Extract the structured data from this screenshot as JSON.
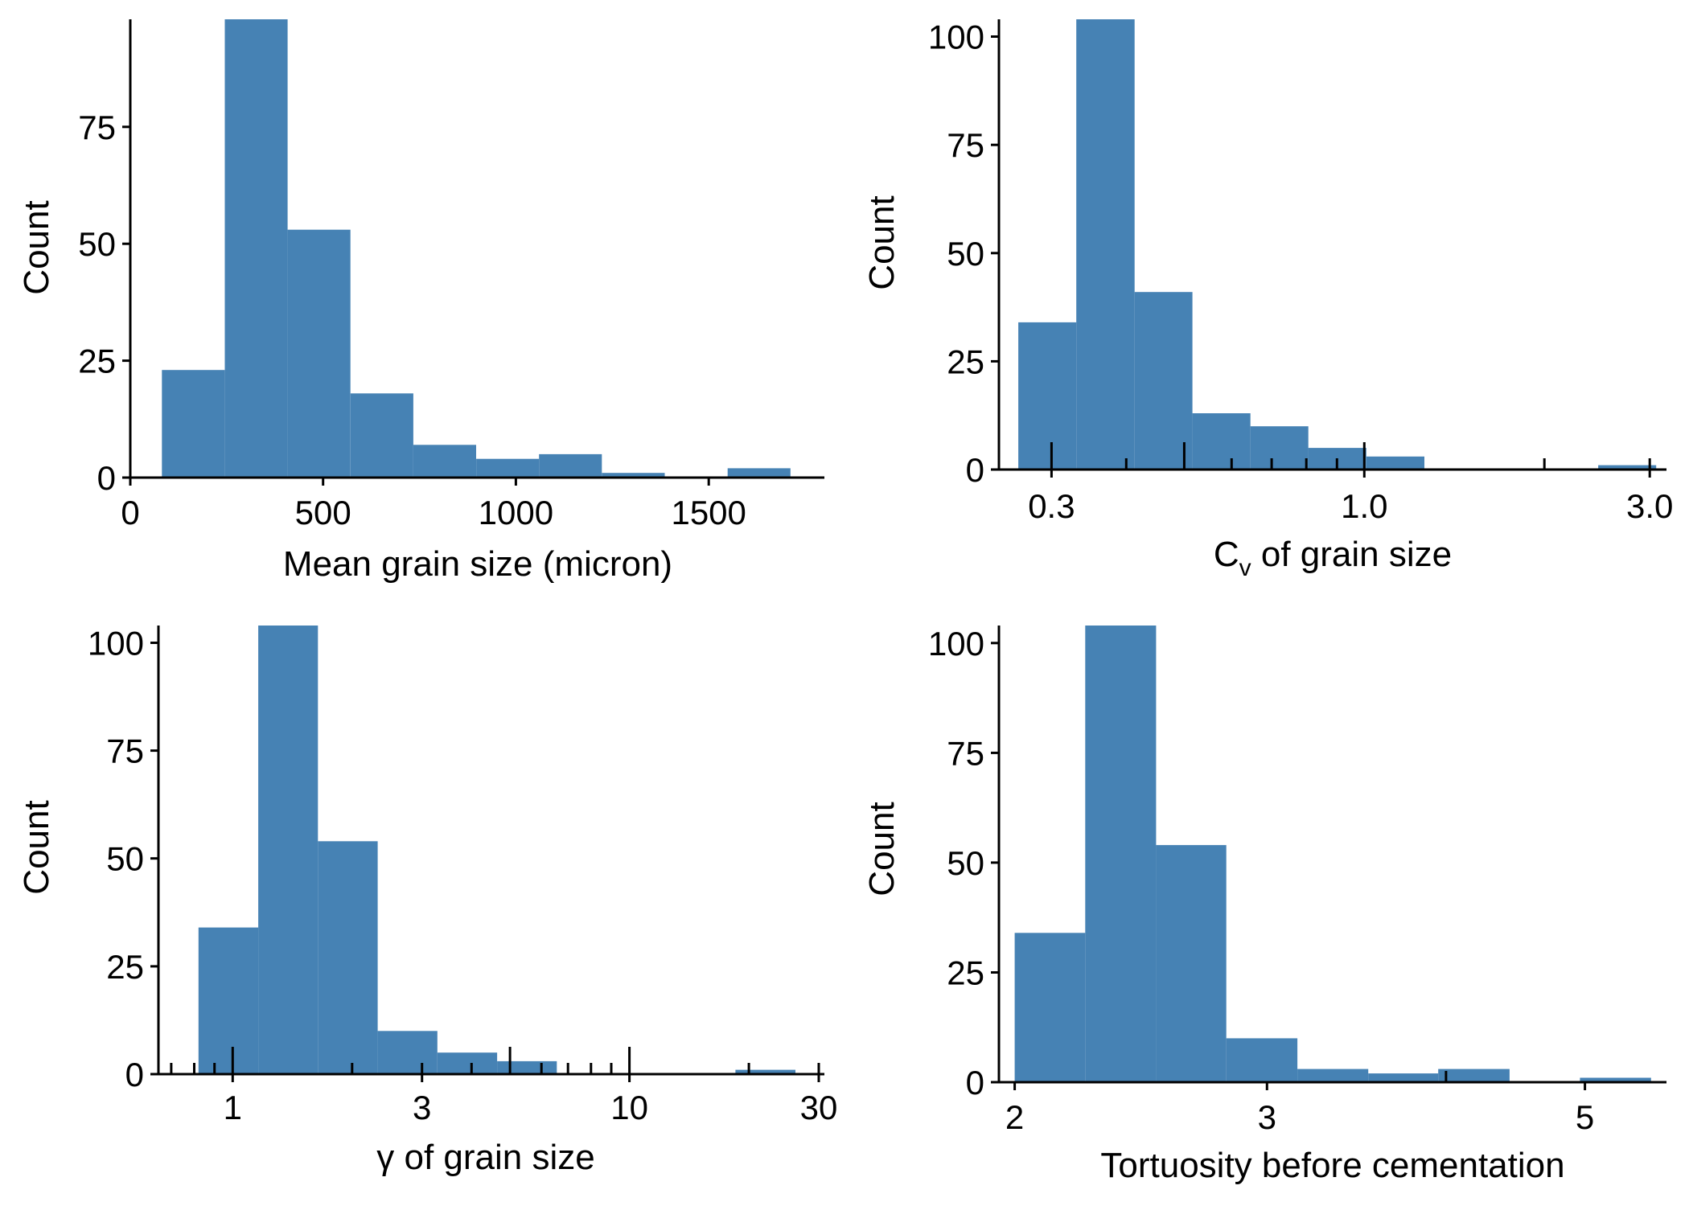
{
  "colors": {
    "bar": "#4682B4",
    "axis": "#000000",
    "background": "#FFFFFF"
  },
  "chart_data": [
    {
      "type": "histogram",
      "position": "top-left",
      "scale": "linear",
      "xlabel": "Mean grain size (micron)",
      "ylabel": "Count",
      "xlim": [
        0,
        1800
      ],
      "ylim": [
        0,
        98
      ],
      "xticks": [
        {
          "value": 0,
          "label": "0"
        },
        {
          "value": 500,
          "label": "500"
        },
        {
          "value": 1000,
          "label": "1000"
        },
        {
          "value": 1500,
          "label": "1500"
        }
      ],
      "yticks": [
        {
          "value": 0,
          "label": "0"
        },
        {
          "value": 25,
          "label": "25"
        },
        {
          "value": 50,
          "label": "50"
        },
        {
          "value": 75,
          "label": "75"
        }
      ],
      "bins": [
        {
          "x0": 82,
          "x1": 245,
          "count": 23
        },
        {
          "x0": 245,
          "x1": 408,
          "count": 98
        },
        {
          "x0": 408,
          "x1": 571,
          "count": 53
        },
        {
          "x0": 571,
          "x1": 734,
          "count": 18
        },
        {
          "x0": 734,
          "x1": 897,
          "count": 7
        },
        {
          "x0": 897,
          "x1": 1060,
          "count": 4
        },
        {
          "x0": 1060,
          "x1": 1223,
          "count": 5
        },
        {
          "x0": 1223,
          "x1": 1386,
          "count": 1
        },
        {
          "x0": 1386,
          "x1": 1549,
          "count": 0
        },
        {
          "x0": 1549,
          "x1": 1712,
          "count": 2
        }
      ],
      "rug": []
    },
    {
      "type": "histogram",
      "position": "top-right",
      "scale": "log10",
      "xlabel_main": "C",
      "xlabel_sub": "v",
      "xlabel_rest": " of grain size",
      "ylabel": "Count",
      "xlim": [
        0.245,
        3.2
      ],
      "ylim": [
        0,
        104
      ],
      "xticks": [
        {
          "value": 0.3,
          "label": "0.3"
        },
        {
          "value": 1.0,
          "label": "1.0"
        },
        {
          "value": 3.0,
          "label": "3.0"
        }
      ],
      "yticks": [
        {
          "value": 0,
          "label": "0"
        },
        {
          "value": 25,
          "label": "25"
        },
        {
          "value": 50,
          "label": "50"
        },
        {
          "value": 75,
          "label": "75"
        },
        {
          "value": 100,
          "label": "100"
        }
      ],
      "bins": [
        {
          "x0": 0.264,
          "x1": 0.33,
          "count": 34
        },
        {
          "x0": 0.33,
          "x1": 0.413,
          "count": 104
        },
        {
          "x0": 0.413,
          "x1": 0.516,
          "count": 41
        },
        {
          "x0": 0.516,
          "x1": 0.645,
          "count": 13
        },
        {
          "x0": 0.645,
          "x1": 0.806,
          "count": 10
        },
        {
          "x0": 0.806,
          "x1": 1.008,
          "count": 5
        },
        {
          "x0": 1.008,
          "x1": 1.26,
          "count": 3
        },
        {
          "x0": 1.26,
          "x1": 1.575,
          "count": 0
        },
        {
          "x0": 1.575,
          "x1": 1.968,
          "count": 0
        },
        {
          "x0": 1.968,
          "x1": 2.46,
          "count": 0
        },
        {
          "x0": 2.46,
          "x1": 3.075,
          "count": 1
        }
      ],
      "rug": [
        {
          "value": 0.3,
          "long": true
        },
        {
          "value": 0.4,
          "long": false
        },
        {
          "value": 0.5,
          "long": true
        },
        {
          "value": 0.6,
          "long": false
        },
        {
          "value": 0.7,
          "long": false
        },
        {
          "value": 0.8,
          "long": false
        },
        {
          "value": 0.9,
          "long": false
        },
        {
          "value": 1.0,
          "long": true
        },
        {
          "value": 2.0,
          "long": false
        },
        {
          "value": 3.0,
          "long": false
        }
      ]
    },
    {
      "type": "histogram",
      "position": "bottom-left",
      "scale": "log10",
      "xlabel": "γ of grain size",
      "ylabel": "Count",
      "xlim": [
        0.65,
        31
      ],
      "ylim": [
        0,
        104
      ],
      "xticks": [
        {
          "value": 1,
          "label": "1"
        },
        {
          "value": 3,
          "label": "3"
        },
        {
          "value": 10,
          "label": "10"
        },
        {
          "value": 30,
          "label": "30"
        }
      ],
      "yticks": [
        {
          "value": 0,
          "label": "0"
        },
        {
          "value": 25,
          "label": "25"
        },
        {
          "value": 50,
          "label": "50"
        },
        {
          "value": 75,
          "label": "75"
        },
        {
          "value": 100,
          "label": "100"
        }
      ],
      "bins": [
        {
          "x0": 0.82,
          "x1": 1.16,
          "count": 34
        },
        {
          "x0": 1.16,
          "x1": 1.64,
          "count": 104
        },
        {
          "x0": 1.64,
          "x1": 2.32,
          "count": 54
        },
        {
          "x0": 2.32,
          "x1": 3.28,
          "count": 10
        },
        {
          "x0": 3.28,
          "x1": 4.64,
          "count": 5
        },
        {
          "x0": 4.64,
          "x1": 6.56,
          "count": 3
        },
        {
          "x0": 6.56,
          "x1": 9.28,
          "count": 0
        },
        {
          "x0": 9.28,
          "x1": 13.1,
          "count": 0
        },
        {
          "x0": 13.1,
          "x1": 18.5,
          "count": 0
        },
        {
          "x0": 18.5,
          "x1": 26.2,
          "count": 1
        }
      ],
      "rug": [
        {
          "value": 0.7,
          "long": false
        },
        {
          "value": 0.8,
          "long": false
        },
        {
          "value": 0.9,
          "long": false
        },
        {
          "value": 1,
          "long": true
        },
        {
          "value": 2,
          "long": false
        },
        {
          "value": 3,
          "long": false
        },
        {
          "value": 4,
          "long": false
        },
        {
          "value": 5,
          "long": true
        },
        {
          "value": 6,
          "long": false
        },
        {
          "value": 7,
          "long": false
        },
        {
          "value": 8,
          "long": false
        },
        {
          "value": 9,
          "long": false
        },
        {
          "value": 10,
          "long": true
        },
        {
          "value": 20,
          "long": false
        },
        {
          "value": 30,
          "long": false
        }
      ]
    },
    {
      "type": "histogram",
      "position": "bottom-right",
      "scale": "log10",
      "xlabel": "Tortuosity before cementation",
      "ylabel": "Count",
      "xlim": [
        1.95,
        5.7
      ],
      "ylim": [
        0,
        104
      ],
      "xticks": [
        {
          "value": 2,
          "label": "2"
        },
        {
          "value": 3,
          "label": "3"
        },
        {
          "value": 5,
          "label": "5"
        }
      ],
      "yticks": [
        {
          "value": 0,
          "label": "0"
        },
        {
          "value": 25,
          "label": "25"
        },
        {
          "value": 50,
          "label": "50"
        },
        {
          "value": 75,
          "label": "75"
        },
        {
          "value": 100,
          "label": "100"
        }
      ],
      "bins": [
        {
          "x0": 2.0,
          "x1": 2.24,
          "count": 34
        },
        {
          "x0": 2.24,
          "x1": 2.51,
          "count": 104
        },
        {
          "x0": 2.51,
          "x1": 2.81,
          "count": 54
        },
        {
          "x0": 2.81,
          "x1": 3.15,
          "count": 10
        },
        {
          "x0": 3.15,
          "x1": 3.53,
          "count": 3
        },
        {
          "x0": 3.53,
          "x1": 3.95,
          "count": 2
        },
        {
          "x0": 3.95,
          "x1": 4.43,
          "count": 3
        },
        {
          "x0": 4.43,
          "x1": 4.96,
          "count": 0
        },
        {
          "x0": 4.96,
          "x1": 5.56,
          "count": 1
        }
      ],
      "rug": [
        {
          "value": 4,
          "long": false
        }
      ]
    }
  ]
}
